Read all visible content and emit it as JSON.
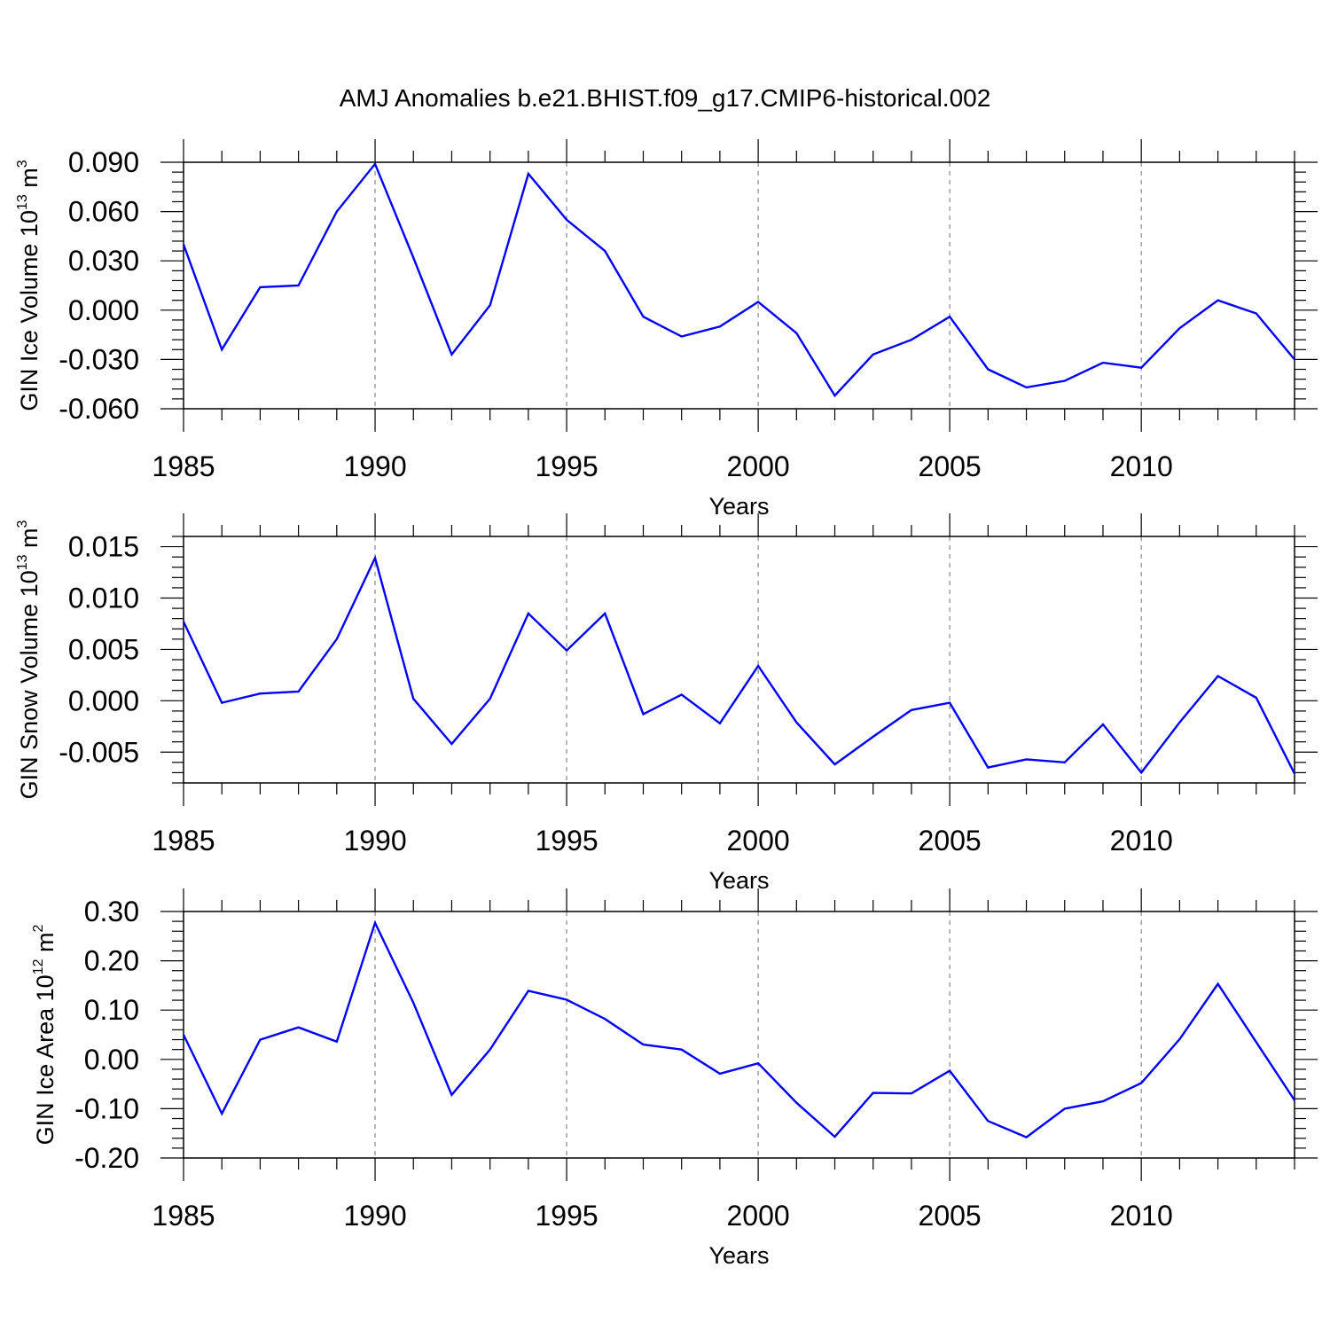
{
  "figure_title": "AMJ Anomalies b.e21.BHIST.f09_g17.CMIP6-historical.002",
  "colors": {
    "line": "#0000ff",
    "axis": "#000000",
    "grid": "#888888"
  },
  "chart_data": [
    {
      "type": "line",
      "ylabel": {
        "base": "GIN Ice Volume 10",
        "sup": "13",
        "rest": " m",
        "sup2": "3"
      },
      "xlabel": "Years",
      "xlim": [
        1985,
        2014
      ],
      "ylim": [
        -0.06,
        0.09
      ],
      "xticks": [
        "1985",
        "1990",
        "1995",
        "2000",
        "2005",
        "2010"
      ],
      "yticks": [
        "0.090",
        "0.060",
        "0.030",
        "0.000",
        "-0.030",
        "-0.060"
      ],
      "ytick_values": [
        0.09,
        0.06,
        0.03,
        0.0,
        -0.03,
        -0.06
      ],
      "grid": "dashed vertical at major x ticks",
      "x": [
        1985,
        1986,
        1987,
        1988,
        1989,
        1990,
        1991,
        1992,
        1993,
        1994,
        1995,
        1996,
        1997,
        1998,
        1999,
        2000,
        2001,
        2002,
        2003,
        2004,
        2005,
        2006,
        2007,
        2008,
        2009,
        2010,
        2011,
        2012,
        2013,
        2014
      ],
      "values": [
        0.04,
        -0.024,
        0.014,
        0.015,
        0.06,
        0.089,
        0.032,
        -0.027,
        0.003,
        0.083,
        0.055,
        0.036,
        -0.004,
        -0.016,
        -0.01,
        0.005,
        -0.014,
        -0.052,
        -0.027,
        -0.018,
        -0.004,
        -0.036,
        -0.047,
        -0.043,
        -0.032,
        -0.035,
        -0.011,
        0.006,
        -0.002,
        -0.03
      ]
    },
    {
      "type": "line",
      "ylabel": {
        "base": "GIN Snow Volume 10",
        "sup": "13",
        "rest": " m",
        "sup2": "3"
      },
      "xlabel": "Years",
      "xlim": [
        1985,
        2014
      ],
      "ylim": [
        -0.008,
        0.016
      ],
      "xticks": [
        "1985",
        "1990",
        "1995",
        "2000",
        "2005",
        "2010"
      ],
      "yticks": [
        "0.015",
        "0.010",
        "0.005",
        "0.000",
        "-0.005"
      ],
      "ytick_values": [
        0.015,
        0.01,
        0.005,
        0.0,
        -0.005
      ],
      "grid": "dashed vertical at major x ticks",
      "x": [
        1985,
        1986,
        1987,
        1988,
        1989,
        1990,
        1991,
        1992,
        1993,
        1994,
        1995,
        1996,
        1997,
        1998,
        1999,
        2000,
        2001,
        2002,
        2003,
        2004,
        2005,
        2006,
        2007,
        2008,
        2009,
        2010,
        2011,
        2012,
        2013,
        2014
      ],
      "values": [
        0.0077,
        -0.0002,
        0.0007,
        0.0009,
        0.006,
        0.0139,
        0.0002,
        -0.0042,
        0.0002,
        0.0085,
        0.0049,
        0.0085,
        -0.0013,
        0.0006,
        -0.0022,
        0.0034,
        -0.0021,
        -0.0062,
        -0.0035,
        -0.0009,
        -0.0002,
        -0.0065,
        -0.0057,
        -0.006,
        -0.0023,
        -0.007,
        -0.0021,
        0.0024,
        0.0003,
        -0.0071
      ]
    },
    {
      "type": "line",
      "ylabel": {
        "base": "GIN Ice Area 10",
        "sup": "12",
        "rest": " m",
        "sup2": "2"
      },
      "xlabel": "Years",
      "xlim": [
        1985,
        2014
      ],
      "ylim": [
        -0.2,
        0.3
      ],
      "xticks": [
        "1985",
        "1990",
        "1995",
        "2000",
        "2005",
        "2010"
      ],
      "yticks": [
        "0.30",
        "0.20",
        "0.10",
        "0.00",
        "-0.10",
        "-0.20"
      ],
      "ytick_values": [
        0.3,
        0.2,
        0.1,
        0.0,
        -0.1,
        -0.2
      ],
      "grid": "dashed vertical at major x ticks",
      "x": [
        1985,
        1986,
        1987,
        1988,
        1989,
        1990,
        1991,
        1992,
        1993,
        1994,
        1995,
        1996,
        1997,
        1998,
        1999,
        2000,
        2001,
        2002,
        2003,
        2004,
        2005,
        2006,
        2007,
        2008,
        2009,
        2010,
        2011,
        2012,
        2013,
        2014
      ],
      "values": [
        0.05,
        -0.11,
        0.04,
        0.065,
        0.036,
        0.277,
        0.115,
        -0.072,
        0.02,
        0.139,
        0.121,
        0.082,
        0.03,
        0.02,
        -0.029,
        -0.008,
        -0.088,
        -0.157,
        -0.068,
        -0.069,
        -0.023,
        -0.125,
        -0.158,
        -0.1,
        -0.085,
        -0.048,
        0.041,
        0.153,
        0.035,
        -0.083
      ]
    }
  ]
}
